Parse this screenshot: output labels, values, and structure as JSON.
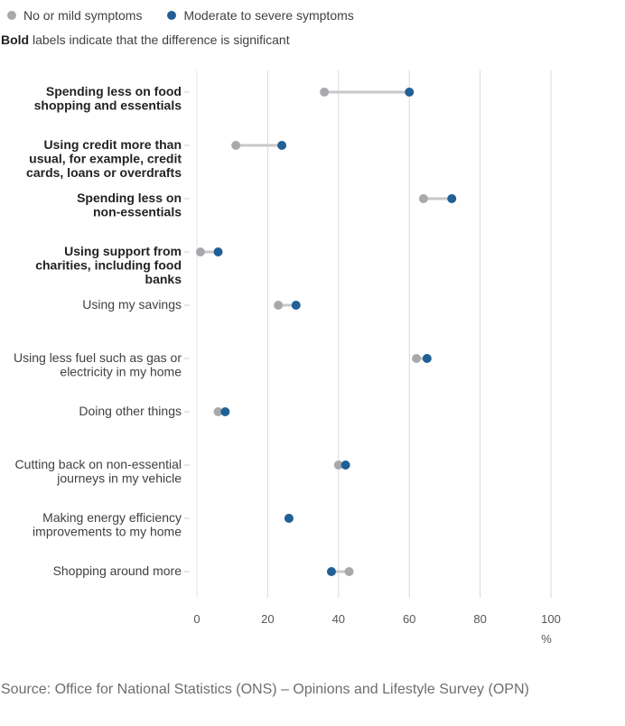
{
  "legend": {
    "no_mild": {
      "label": "No or mild symptoms",
      "color": "#a7a9ac"
    },
    "moderate": {
      "label": "Moderate to severe symptoms",
      "color": "#206095"
    }
  },
  "note": {
    "bold": "Bold",
    "rest": " labels indicate that the difference is significant"
  },
  "source": "Source: Office for National Statistics (ONS) – Opinions and Lifestyle Survey (OPN)",
  "chart_data": {
    "type": "dot-plot",
    "xlabel": "%",
    "xlim": [
      0,
      100
    ],
    "xticks": [
      0,
      20,
      40,
      60,
      80,
      100
    ],
    "grid": true,
    "series": [
      {
        "name": "No or mild symptoms",
        "color": "#a7a9ac"
      },
      {
        "name": "Moderate to severe symptoms",
        "color": "#206095"
      }
    ],
    "categories": [
      {
        "lines": [
          "Spending less on food",
          "shopping and essentials"
        ],
        "bold": true,
        "no_mild": 36,
        "moderate": 60
      },
      {
        "lines": [
          "Using credit more than",
          "usual, for example, credit",
          "cards, loans or overdrafts"
        ],
        "bold": true,
        "no_mild": 11,
        "moderate": 24
      },
      {
        "lines": [
          "Spending less on",
          "non-essentials"
        ],
        "bold": true,
        "no_mild": 64,
        "moderate": 72
      },
      {
        "lines": [
          "Using support from",
          "charities, including food",
          "banks"
        ],
        "bold": true,
        "no_mild": 1,
        "moderate": 6
      },
      {
        "lines": [
          "Using my savings"
        ],
        "bold": false,
        "no_mild": 23,
        "moderate": 28
      },
      {
        "lines": [
          "Using less fuel such as gas or",
          "electricity in my home"
        ],
        "bold": false,
        "no_mild": 62,
        "moderate": 65
      },
      {
        "lines": [
          "Doing other things"
        ],
        "bold": false,
        "no_mild": 6,
        "moderate": 8
      },
      {
        "lines": [
          "Cutting back on non-essential",
          "journeys in my vehicle"
        ],
        "bold": false,
        "no_mild": 40,
        "moderate": 42
      },
      {
        "lines": [
          "Making energy efficiency",
          "improvements to my home"
        ],
        "bold": false,
        "no_mild": 26,
        "moderate": 26
      },
      {
        "lines": [
          "Shopping around more"
        ],
        "bold": false,
        "no_mild": 43,
        "moderate": 38
      }
    ]
  }
}
